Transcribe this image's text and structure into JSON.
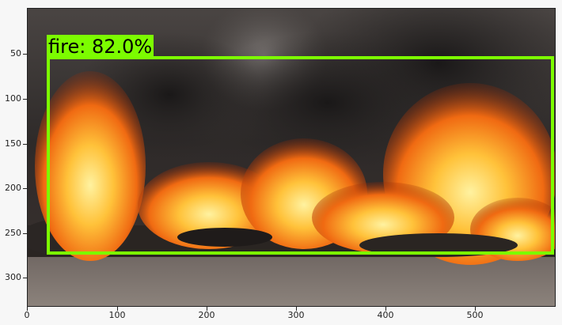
{
  "image": {
    "description_icon": "fire-scene-photo"
  },
  "detection": {
    "label": "fire: 82.0%",
    "color": "#7cfc00"
  },
  "axes": {
    "y_ticks": [
      "50",
      "100",
      "150",
      "200",
      "250",
      "300"
    ],
    "x_ticks": [
      "0",
      "100",
      "200",
      "300",
      "400",
      "500"
    ]
  }
}
